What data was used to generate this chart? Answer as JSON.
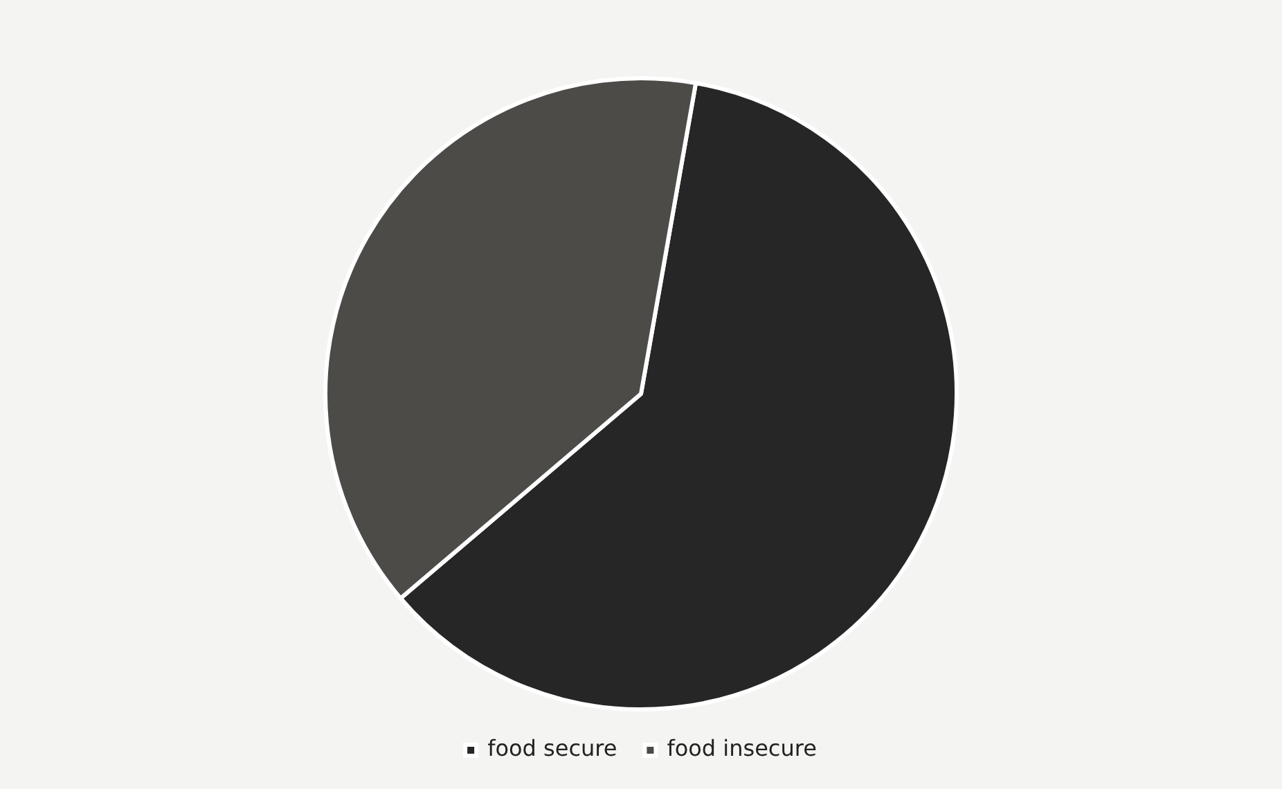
{
  "chart_data": {
    "type": "pie",
    "categories": [
      "food secure",
      "food insecure"
    ],
    "values": [
      61,
      39
    ],
    "colors": [
      "#262626",
      "#4d4b48"
    ],
    "legend": "bottom"
  }
}
